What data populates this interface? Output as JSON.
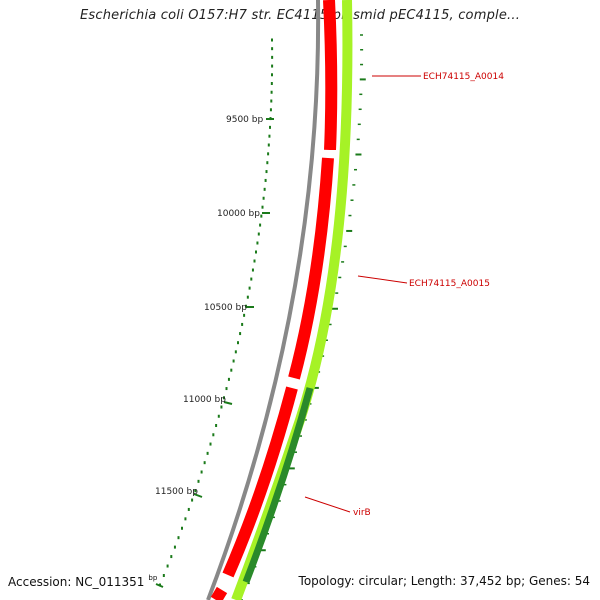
{
  "title": "Escherichia coli O157:H7 str. EC4115 plasmid pEC4115, comple...",
  "footer": {
    "accession": "Accession: NC_011351",
    "accession_unit": "bp",
    "summary": "Topology: circular; Length: 37,452 bp; Genes: 54"
  },
  "colors": {
    "backbone": "#888888",
    "gene_forward": "#ff0000",
    "gene_reverse": "#a6f226",
    "gene_highlight": "#2a8a2a",
    "tick": "#1a7a1a",
    "label": "#cc0000"
  },
  "ticks": [
    {
      "label": "9500 bp"
    },
    {
      "label": "10000 bp"
    },
    {
      "label": "10500 bp"
    },
    {
      "label": "11000 bp"
    },
    {
      "label": "11500 bp"
    }
  ],
  "genes": [
    {
      "name": "ECH74115_A0014"
    },
    {
      "name": "ECH74115_A0015"
    },
    {
      "name": "virB"
    }
  ]
}
